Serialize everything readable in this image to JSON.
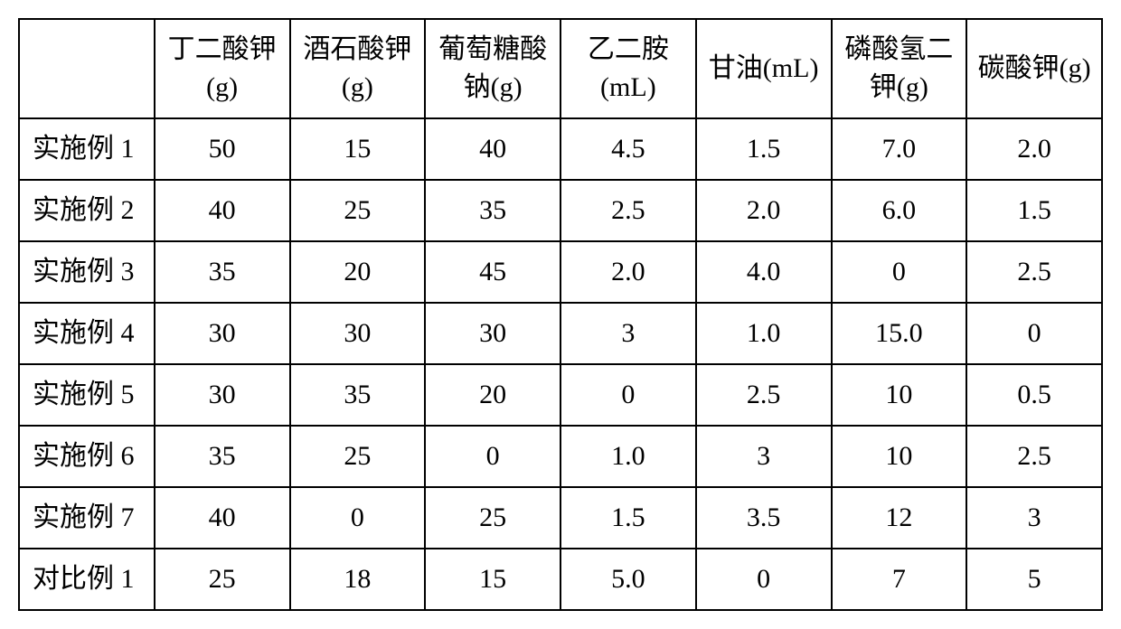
{
  "table": {
    "columns": [
      "丁二酸钾(g)",
      "酒石酸钾(g)",
      "葡萄糖酸钠(g)",
      "乙二胺(mL)",
      "甘油(mL)",
      "磷酸氢二钾(g)",
      "碳酸钾(g)"
    ],
    "rows": [
      {
        "label": "实施例 1",
        "values": [
          "50",
          "15",
          "40",
          "4.5",
          "1.5",
          "7.0",
          "2.0"
        ]
      },
      {
        "label": "实施例 2",
        "values": [
          "40",
          "25",
          "35",
          "2.5",
          "2.0",
          "6.0",
          "1.5"
        ]
      },
      {
        "label": "实施例 3",
        "values": [
          "35",
          "20",
          "45",
          "2.0",
          "4.0",
          "0",
          "2.5"
        ]
      },
      {
        "label": "实施例 4",
        "values": [
          "30",
          "30",
          "30",
          "3",
          "1.0",
          "15.0",
          "0"
        ]
      },
      {
        "label": "实施例 5",
        "values": [
          "30",
          "35",
          "20",
          "0",
          "2.5",
          "10",
          "0.5"
        ]
      },
      {
        "label": "实施例 6",
        "values": [
          "35",
          "25",
          "0",
          "1.0",
          "3",
          "10",
          "2.5"
        ]
      },
      {
        "label": "实施例 7",
        "values": [
          "40",
          "0",
          "25",
          "1.5",
          "3.5",
          "12",
          "3"
        ]
      },
      {
        "label": "对比例 1",
        "values": [
          "25",
          "18",
          "15",
          "5.0",
          "0",
          "7",
          "5"
        ]
      }
    ],
    "cell_font_size": 30,
    "border_color": "#000000",
    "border_width": 2,
    "background_color": "#ffffff",
    "text_color": "#000000"
  }
}
